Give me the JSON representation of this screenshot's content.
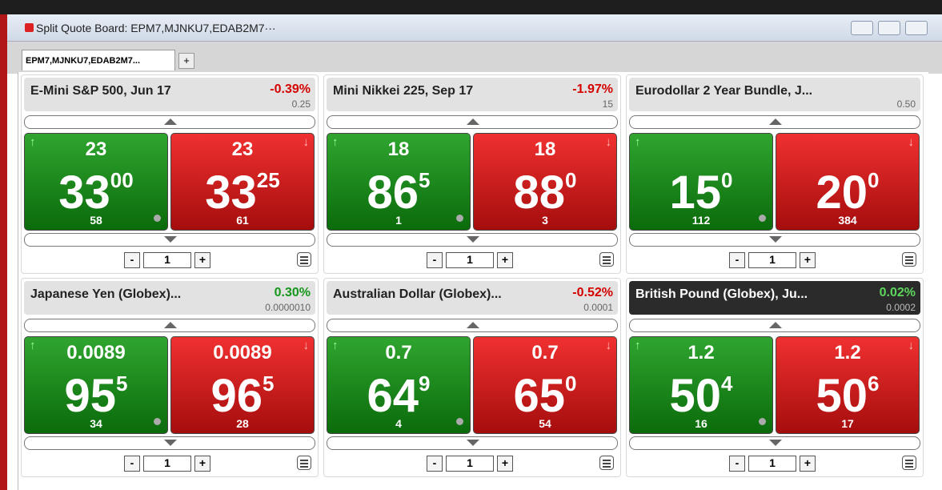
{
  "window": {
    "title": "Split Quote Board: EPM7,MJNKU7,EDAB2M7···"
  },
  "tabs": [
    "EPM7,MJNKU7,EDAB2M7...",
    "+"
  ],
  "controls": {
    "minus": "-",
    "plus": "+"
  },
  "panels": [
    {
      "name": "E-Mini S&P 500, Jun 17",
      "change": "-0.39%",
      "change_color": "#d40000",
      "tick": "0.25",
      "quantity": "1",
      "bid": {
        "prefix": "23",
        "main": "33",
        "sup": "00",
        "size": "58"
      },
      "ask": {
        "prefix": "23",
        "main": "33",
        "sup": "25",
        "size": "61"
      }
    },
    {
      "name": "Mini Nikkei 225, Sep 17",
      "change": "-1.97%",
      "change_color": "#d40000",
      "tick": "15",
      "quantity": "1",
      "bid": {
        "prefix": "18",
        "main": "86",
        "sup": "5",
        "size": "1"
      },
      "ask": {
        "prefix": "18",
        "main": "88",
        "sup": "0",
        "size": "3"
      }
    },
    {
      "name": "Eurodollar 2 Year Bundle, J...",
      "tick": "0.50",
      "quantity": "1",
      "bid": {
        "main": "15",
        "sup": "0",
        "size": "112"
      },
      "ask": {
        "main": "20",
        "sup": "0",
        "size": "384"
      }
    },
    {
      "name": "Japanese Yen (Globex)...",
      "change": "0.30%",
      "change_color": "#16961a",
      "tick": "0.0000010",
      "quantity": "1",
      "bid": {
        "prefix": "0.0089",
        "main": "95",
        "sup": "5",
        "size": "34"
      },
      "ask": {
        "prefix": "0.0089",
        "main": "96",
        "sup": "5",
        "size": "28"
      }
    },
    {
      "name": "Australian Dollar (Globex)...",
      "change": "-0.52%",
      "change_color": "#d40000",
      "tick": "0.0001",
      "quantity": "1",
      "bid": {
        "prefix": "0.7",
        "main": "64",
        "sup": "9",
        "size": "4"
      },
      "ask": {
        "prefix": "0.7",
        "main": "65",
        "sup": "0",
        "size": "54"
      }
    },
    {
      "name": "British Pound (Globex), Ju...",
      "change": "0.02%",
      "change_color": "#5cd65c",
      "tick": "0.0002",
      "quantity": "1",
      "header_dark": true,
      "bid": {
        "prefix": "1.2",
        "main": "50",
        "sup": "4",
        "size": "16"
      },
      "ask": {
        "prefix": "1.2",
        "main": "50",
        "sup": "6",
        "size": "17"
      }
    }
  ]
}
